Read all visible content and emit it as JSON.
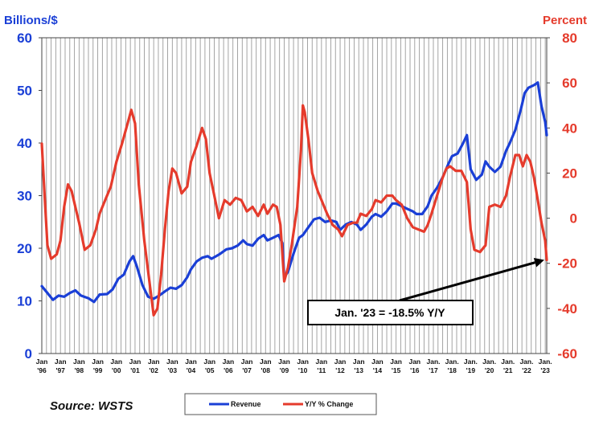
{
  "chart_data": {
    "type": "line",
    "left_axis_label": "Billions/$",
    "right_axis_label": "Percent",
    "left_ylim": [
      0,
      60
    ],
    "right_ylim": [
      -60,
      80
    ],
    "left_ticks": [
      "0",
      "10",
      "20",
      "30",
      "40",
      "50",
      "60"
    ],
    "right_ticks": [
      "-60",
      "-40",
      "-20",
      "0",
      "20",
      "40",
      "60",
      "80"
    ],
    "x_ticks": [
      [
        "Jan",
        "'96"
      ],
      [
        "Jan",
        "'97"
      ],
      [
        "Jan",
        "'98"
      ],
      [
        "Jan",
        "'99"
      ],
      [
        "Jan",
        "'00"
      ],
      [
        "Jan",
        "'01"
      ],
      [
        "Jan",
        "'02"
      ],
      [
        "Jan",
        "'03"
      ],
      [
        "Jan",
        "'04"
      ],
      [
        "Jan",
        "'05"
      ],
      [
        "Jan",
        "'06"
      ],
      [
        "Jan",
        "'07"
      ],
      [
        "Jan",
        "'08"
      ],
      [
        "Jan",
        "'09"
      ],
      [
        "Jan",
        "'10"
      ],
      [
        "Jan",
        "'11"
      ],
      [
        "Jan",
        "'12"
      ],
      [
        "Jan",
        "'13"
      ],
      [
        "Jan",
        "'14"
      ],
      [
        "Jan",
        "'15"
      ],
      [
        "Jan",
        "'16"
      ],
      [
        "Jan.",
        "'17"
      ],
      [
        "Jan.",
        "'18"
      ],
      [
        "Jan.",
        "'19"
      ],
      [
        "Jan.",
        "'20"
      ],
      [
        "Jan.",
        "'21"
      ],
      [
        "Jan.",
        "'22"
      ],
      [
        "Jan.",
        "'23"
      ]
    ],
    "grid": "vertical",
    "legend_position": "bottom",
    "series": [
      {
        "name": "Revenue",
        "axis": "left",
        "color": "#1a3fd6",
        "points": [
          [
            1996.0,
            12.8
          ],
          [
            1996.3,
            11.5
          ],
          [
            1996.6,
            10.2
          ],
          [
            1996.9,
            11.0
          ],
          [
            1997.2,
            10.8
          ],
          [
            1997.5,
            11.5
          ],
          [
            1997.8,
            12.0
          ],
          [
            1998.1,
            11.0
          ],
          [
            1998.5,
            10.5
          ],
          [
            1998.8,
            9.8
          ],
          [
            1999.1,
            11.2
          ],
          [
            1999.5,
            11.3
          ],
          [
            1999.8,
            12.2
          ],
          [
            2000.1,
            14.2
          ],
          [
            2000.4,
            15.0
          ],
          [
            2000.7,
            17.5
          ],
          [
            2000.9,
            18.5
          ],
          [
            2001.1,
            16.5
          ],
          [
            2001.4,
            13.0
          ],
          [
            2001.7,
            10.8
          ],
          [
            2002.0,
            10.4
          ],
          [
            2002.3,
            11.0
          ],
          [
            2002.6,
            11.8
          ],
          [
            2002.9,
            12.5
          ],
          [
            2003.2,
            12.3
          ],
          [
            2003.5,
            13.0
          ],
          [
            2003.8,
            14.5
          ],
          [
            2004.0,
            16.0
          ],
          [
            2004.3,
            17.5
          ],
          [
            2004.6,
            18.2
          ],
          [
            2004.9,
            18.5
          ],
          [
            2005.1,
            18.0
          ],
          [
            2005.5,
            18.8
          ],
          [
            2005.9,
            19.8
          ],
          [
            2006.2,
            20.0
          ],
          [
            2006.5,
            20.5
          ],
          [
            2006.8,
            21.5
          ],
          [
            2007.0,
            20.8
          ],
          [
            2007.3,
            20.5
          ],
          [
            2007.6,
            21.8
          ],
          [
            2007.9,
            22.5
          ],
          [
            2008.1,
            21.5
          ],
          [
            2008.4,
            22.0
          ],
          [
            2008.7,
            22.5
          ],
          [
            2008.9,
            21.0
          ],
          [
            2009.0,
            14.5
          ],
          [
            2009.2,
            15.5
          ],
          [
            2009.5,
            19.0
          ],
          [
            2009.8,
            22.0
          ],
          [
            2010.0,
            22.5
          ],
          [
            2010.3,
            24.0
          ],
          [
            2010.6,
            25.5
          ],
          [
            2010.9,
            25.8
          ],
          [
            2011.2,
            25.0
          ],
          [
            2011.5,
            25.3
          ],
          [
            2011.8,
            25.0
          ],
          [
            2012.0,
            23.5
          ],
          [
            2012.3,
            24.5
          ],
          [
            2012.6,
            25.0
          ],
          [
            2012.9,
            24.5
          ],
          [
            2013.1,
            23.5
          ],
          [
            2013.4,
            24.5
          ],
          [
            2013.7,
            26.0
          ],
          [
            2013.9,
            26.5
          ],
          [
            2014.2,
            26.0
          ],
          [
            2014.5,
            27.0
          ],
          [
            2014.8,
            28.5
          ],
          [
            2015.0,
            28.5
          ],
          [
            2015.3,
            28.0
          ],
          [
            2015.6,
            27.5
          ],
          [
            2015.9,
            27.0
          ],
          [
            2016.1,
            26.5
          ],
          [
            2016.4,
            26.5
          ],
          [
            2016.7,
            28.0
          ],
          [
            2016.9,
            30.0
          ],
          [
            2017.2,
            31.5
          ],
          [
            2017.5,
            33.5
          ],
          [
            2017.8,
            36.0
          ],
          [
            2018.0,
            37.5
          ],
          [
            2018.3,
            38.0
          ],
          [
            2018.6,
            40.0
          ],
          [
            2018.8,
            41.5
          ],
          [
            2019.0,
            35.0
          ],
          [
            2019.3,
            33.0
          ],
          [
            2019.6,
            34.0
          ],
          [
            2019.8,
            36.5
          ],
          [
            2020.0,
            35.5
          ],
          [
            2020.3,
            34.5
          ],
          [
            2020.6,
            35.5
          ],
          [
            2020.9,
            38.5
          ],
          [
            2021.1,
            40.0
          ],
          [
            2021.4,
            42.5
          ],
          [
            2021.7,
            46.5
          ],
          [
            2021.9,
            49.5
          ],
          [
            2022.1,
            50.5
          ],
          [
            2022.4,
            51.0
          ],
          [
            2022.6,
            51.5
          ],
          [
            2022.8,
            47.0
          ],
          [
            2023.0,
            44.0
          ],
          [
            2023.08,
            41.5
          ]
        ]
      },
      {
        "name": "Y/Y % Change",
        "axis": "right",
        "color": "#e53b2c",
        "points": [
          [
            1996.0,
            33
          ],
          [
            1996.15,
            10
          ],
          [
            1996.3,
            -12
          ],
          [
            1996.5,
            -18
          ],
          [
            1996.8,
            -16
          ],
          [
            1997.0,
            -10
          ],
          [
            1997.2,
            5
          ],
          [
            1997.4,
            15
          ],
          [
            1997.6,
            12
          ],
          [
            1997.8,
            5
          ],
          [
            1998.0,
            -2
          ],
          [
            1998.3,
            -14
          ],
          [
            1998.6,
            -12
          ],
          [
            1998.9,
            -5
          ],
          [
            1999.1,
            2
          ],
          [
            1999.4,
            8
          ],
          [
            1999.7,
            14
          ],
          [
            2000.0,
            25
          ],
          [
            2000.3,
            33
          ],
          [
            2000.6,
            42
          ],
          [
            2000.8,
            48
          ],
          [
            2001.0,
            42
          ],
          [
            2001.2,
            15
          ],
          [
            2001.5,
            -10
          ],
          [
            2001.8,
            -30
          ],
          [
            2002.0,
            -43
          ],
          [
            2002.2,
            -40
          ],
          [
            2002.4,
            -25
          ],
          [
            2002.6,
            -5
          ],
          [
            2002.8,
            12
          ],
          [
            2003.0,
            22
          ],
          [
            2003.2,
            20
          ],
          [
            2003.5,
            11
          ],
          [
            2003.8,
            14
          ],
          [
            2004.0,
            25
          ],
          [
            2004.3,
            32
          ],
          [
            2004.6,
            40
          ],
          [
            2004.8,
            35
          ],
          [
            2005.0,
            20
          ],
          [
            2005.2,
            12
          ],
          [
            2005.5,
            0
          ],
          [
            2005.8,
            8
          ],
          [
            2006.1,
            6
          ],
          [
            2006.4,
            9
          ],
          [
            2006.7,
            8
          ],
          [
            2007.0,
            3
          ],
          [
            2007.3,
            5
          ],
          [
            2007.6,
            1
          ],
          [
            2007.9,
            6
          ],
          [
            2008.1,
            2
          ],
          [
            2008.4,
            6
          ],
          [
            2008.6,
            5
          ],
          [
            2008.8,
            -3
          ],
          [
            2009.0,
            -28
          ],
          [
            2009.2,
            -22
          ],
          [
            2009.4,
            -12
          ],
          [
            2009.7,
            5
          ],
          [
            2009.9,
            30
          ],
          [
            2010.0,
            50
          ],
          [
            2010.1,
            47
          ],
          [
            2010.3,
            35
          ],
          [
            2010.5,
            20
          ],
          [
            2010.8,
            12
          ],
          [
            2011.0,
            8
          ],
          [
            2011.3,
            2
          ],
          [
            2011.6,
            -3
          ],
          [
            2011.9,
            -5
          ],
          [
            2012.1,
            -8
          ],
          [
            2012.4,
            -3
          ],
          [
            2012.7,
            -2
          ],
          [
            2012.9,
            -2
          ],
          [
            2013.1,
            2
          ],
          [
            2013.4,
            1
          ],
          [
            2013.7,
            4
          ],
          [
            2013.9,
            8
          ],
          [
            2014.2,
            7
          ],
          [
            2014.5,
            10
          ],
          [
            2014.8,
            10
          ],
          [
            2015.0,
            8
          ],
          [
            2015.3,
            6
          ],
          [
            2015.6,
            0
          ],
          [
            2015.9,
            -4
          ],
          [
            2016.2,
            -5
          ],
          [
            2016.5,
            -6
          ],
          [
            2016.7,
            -3
          ],
          [
            2016.9,
            2
          ],
          [
            2017.2,
            10
          ],
          [
            2017.5,
            18
          ],
          [
            2017.7,
            22
          ],
          [
            2017.9,
            23
          ],
          [
            2018.2,
            21
          ],
          [
            2018.5,
            21
          ],
          [
            2018.8,
            16
          ],
          [
            2019.0,
            -5
          ],
          [
            2019.2,
            -14
          ],
          [
            2019.5,
            -15
          ],
          [
            2019.8,
            -12
          ],
          [
            2020.0,
            5
          ],
          [
            2020.3,
            6
          ],
          [
            2020.6,
            5
          ],
          [
            2020.9,
            10
          ],
          [
            2021.1,
            18
          ],
          [
            2021.4,
            28
          ],
          [
            2021.6,
            28
          ],
          [
            2021.8,
            23
          ],
          [
            2022.0,
            28
          ],
          [
            2022.2,
            25
          ],
          [
            2022.4,
            18
          ],
          [
            2022.6,
            8
          ],
          [
            2022.8,
            -2
          ],
          [
            2023.0,
            -10
          ],
          [
            2023.08,
            -18.5
          ]
        ]
      }
    ],
    "annotation": {
      "text": "Jan. '23 = -18.5% Y/Y",
      "x": 2023.08,
      "y": -18.5
    }
  },
  "source_text": "Source: WSTS",
  "legend": [
    {
      "name": "Revenue",
      "color": "#1a3fd6"
    },
    {
      "name": "Y/Y % Change",
      "color": "#e53b2c"
    }
  ]
}
